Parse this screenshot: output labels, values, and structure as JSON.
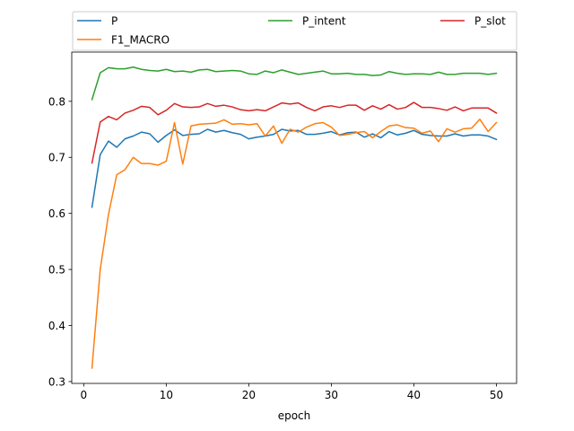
{
  "chart_data": {
    "type": "line",
    "xlabel": "epoch",
    "ylabel": "",
    "xlim": [
      -1.45,
      52.45
    ],
    "ylim": [
      0.2967,
      0.8878
    ],
    "xticks": [
      0,
      10,
      20,
      30,
      40,
      50
    ],
    "yticks": [
      0.3,
      0.4,
      0.5,
      0.6,
      0.7,
      0.8
    ],
    "legend_position": "above plot, 3 columns",
    "x": [
      1,
      2,
      3,
      4,
      5,
      6,
      7,
      8,
      9,
      10,
      11,
      12,
      13,
      14,
      15,
      16,
      17,
      18,
      19,
      20,
      21,
      22,
      23,
      24,
      25,
      26,
      27,
      28,
      29,
      30,
      31,
      32,
      33,
      34,
      35,
      36,
      37,
      38,
      39,
      40,
      41,
      42,
      43,
      44,
      45,
      46,
      47,
      48,
      49,
      50
    ],
    "series": [
      {
        "name": "P",
        "color": "#1f77b4",
        "values": [
          0.611,
          0.705,
          0.729,
          0.718,
          0.733,
          0.738,
          0.745,
          0.742,
          0.727,
          0.739,
          0.749,
          0.739,
          0.741,
          0.742,
          0.75,
          0.745,
          0.748,
          0.744,
          0.741,
          0.733,
          0.736,
          0.738,
          0.741,
          0.75,
          0.747,
          0.748,
          0.741,
          0.741,
          0.743,
          0.746,
          0.74,
          0.744,
          0.745,
          0.736,
          0.742,
          0.735,
          0.746,
          0.74,
          0.743,
          0.748,
          0.741,
          0.739,
          0.738,
          0.738,
          0.742,
          0.738,
          0.74,
          0.74,
          0.738,
          0.732
        ]
      },
      {
        "name": "F1_MACRO",
        "color": "#ff7f0e",
        "values": [
          0.324,
          0.5,
          0.598,
          0.669,
          0.678,
          0.7,
          0.689,
          0.689,
          0.686,
          0.693,
          0.762,
          0.688,
          0.756,
          0.759,
          0.76,
          0.761,
          0.767,
          0.759,
          0.76,
          0.758,
          0.76,
          0.738,
          0.756,
          0.725,
          0.75,
          0.745,
          0.754,
          0.76,
          0.762,
          0.754,
          0.739,
          0.741,
          0.744,
          0.746,
          0.735,
          0.746,
          0.756,
          0.758,
          0.753,
          0.752,
          0.743,
          0.747,
          0.728,
          0.751,
          0.745,
          0.751,
          0.752,
          0.768,
          0.746,
          0.762
        ]
      },
      {
        "name": "P_intent",
        "color": "#2ca02c",
        "values": [
          0.803,
          0.851,
          0.86,
          0.858,
          0.858,
          0.861,
          0.857,
          0.855,
          0.854,
          0.857,
          0.853,
          0.854,
          0.852,
          0.856,
          0.857,
          0.853,
          0.854,
          0.855,
          0.854,
          0.849,
          0.848,
          0.854,
          0.851,
          0.856,
          0.852,
          0.848,
          0.85,
          0.852,
          0.854,
          0.849,
          0.849,
          0.85,
          0.848,
          0.848,
          0.846,
          0.847,
          0.853,
          0.85,
          0.848,
          0.849,
          0.849,
          0.848,
          0.852,
          0.848,
          0.848,
          0.85,
          0.85,
          0.85,
          0.848,
          0.85
        ]
      },
      {
        "name": "P_slot",
        "color": "#d62728",
        "values": [
          0.69,
          0.763,
          0.773,
          0.767,
          0.779,
          0.784,
          0.791,
          0.789,
          0.776,
          0.784,
          0.796,
          0.79,
          0.789,
          0.79,
          0.796,
          0.791,
          0.793,
          0.79,
          0.785,
          0.783,
          0.785,
          0.783,
          0.79,
          0.797,
          0.795,
          0.797,
          0.789,
          0.783,
          0.79,
          0.792,
          0.789,
          0.793,
          0.793,
          0.784,
          0.792,
          0.786,
          0.794,
          0.786,
          0.789,
          0.798,
          0.789,
          0.789,
          0.787,
          0.784,
          0.79,
          0.783,
          0.788,
          0.788,
          0.788,
          0.779
        ]
      }
    ]
  }
}
